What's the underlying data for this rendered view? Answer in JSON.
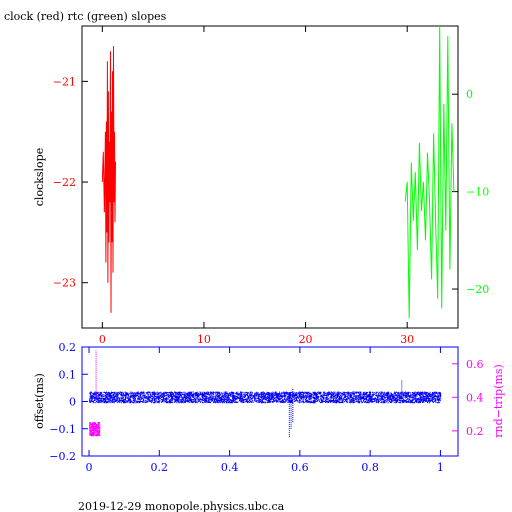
{
  "title": "clock (red) rtc (green) slopes",
  "footer": "2019-12-29  monopole.physics.ubc.ca",
  "colors": {
    "axes": "#000000",
    "clock": "#ff0000",
    "rtc": "#00ff00",
    "offset": "#0000ff",
    "rndtrip": "#ff00ff"
  },
  "chart_data": [
    {
      "type": "line",
      "title": "clock (red) rtc (green) slopes",
      "xlabel": "",
      "xlim": [
        -2,
        35
      ],
      "x_ticks": [
        0,
        10,
        20,
        30
      ],
      "x_tick_labels": [
        "0",
        "10",
        "20",
        "30"
      ],
      "ylabel": "clockslope",
      "ylim": [
        -23.45,
        -20.45
      ],
      "y_ticks": [
        -21,
        -22,
        -23
      ],
      "y_tick_labels": [
        "−21",
        "−22",
        "−23"
      ],
      "y2lim": [
        -24,
        7
      ],
      "y2_ticks": [
        0,
        -10,
        -20
      ],
      "y2_tick_labels": [
        "0",
        "−10",
        "−20"
      ],
      "series": [
        {
          "name": "clock",
          "axis": "left",
          "x": [
            0,
            0.1,
            0.2,
            0.3,
            0.35,
            0.4,
            0.45,
            0.5,
            0.55,
            0.6,
            0.65,
            0.7,
            0.75,
            0.8,
            0.85,
            0.9,
            0.95,
            1.0,
            1.05,
            1.1,
            1.15,
            1.2,
            1.25,
            1.3
          ],
          "values": [
            -22.0,
            -21.7,
            -22.3,
            -21.5,
            -22.8,
            -21.4,
            -22.5,
            -20.8,
            -23.0,
            -21.1,
            -22.6,
            -21.6,
            -22.2,
            -20.7,
            -23.3,
            -21.3,
            -22.6,
            -20.9,
            -22.9,
            -20.65,
            -22.2,
            -21.5,
            -22.4,
            -21.8
          ]
        },
        {
          "name": "rtc",
          "axis": "right",
          "x": [
            29.8,
            30.0,
            30.2,
            30.4,
            30.6,
            30.8,
            31.0,
            31.2,
            31.4,
            31.6,
            31.8,
            32.0,
            32.2,
            32.4,
            32.6,
            32.8,
            33.0,
            33.2,
            33.4,
            33.6,
            33.8,
            34.0,
            34.2,
            34.4,
            34.6
          ],
          "values": [
            -11.0,
            -9.0,
            -23.0,
            -7.0,
            -13.0,
            -8.0,
            -16.0,
            -5.0,
            -12.0,
            -9.0,
            -15.0,
            -6.0,
            -11.0,
            -19.0,
            -4.0,
            -13.0,
            -21.0,
            7.0,
            -22.0,
            -1.0,
            -14.0,
            6.0,
            -18.0,
            -3.0,
            -10.0
          ]
        }
      ]
    },
    {
      "type": "scatter",
      "xlabel": "",
      "xlim": [
        -0.02,
        1.05
      ],
      "x_ticks": [
        0,
        0.2,
        0.4,
        0.6,
        0.8,
        1
      ],
      "x_tick_labels": [
        "0",
        "0.2",
        "0.4",
        "0.6",
        "0.8",
        "1"
      ],
      "ylabel": "offset(ms)",
      "ylim": [
        -0.2,
        0.2
      ],
      "y_ticks": [
        0.2,
        0.1,
        0,
        -0.1,
        -0.2
      ],
      "y_tick_labels": [
        "0.2",
        "0.1",
        "0",
        "−0.1",
        "−0.2"
      ],
      "y2label": "rnd−trip(ms)",
      "y2lim": [
        0.05,
        0.7
      ],
      "y2_ticks": [
        0.6,
        0.4,
        0.2
      ],
      "y2_tick_labels": [
        "0.6",
        "0.4",
        "0.2"
      ],
      "series": [
        {
          "name": "offset",
          "axis": "left",
          "band": {
            "x_start": 0.0,
            "x_end": 1.0,
            "low": -0.005,
            "high": 0.035
          },
          "spikes": [
            {
              "x": 0.57,
              "low": -0.13,
              "high": 0.03
            },
            {
              "x": 0.575,
              "low": -0.1,
              "high": 0.04
            },
            {
              "x": 0.58,
              "low": -0.075,
              "high": 0.05
            },
            {
              "x": 0.89,
              "low": 0.0,
              "high": 0.08
            }
          ]
        },
        {
          "name": "rndtrip",
          "axis": "right",
          "band": {
            "x_start": 0.0,
            "x_end": 0.03,
            "low": 0.17,
            "high": 0.25
          },
          "spikes": [
            {
              "x": 0.02,
              "low": 0.4,
              "high": 0.68
            }
          ]
        }
      ]
    }
  ]
}
